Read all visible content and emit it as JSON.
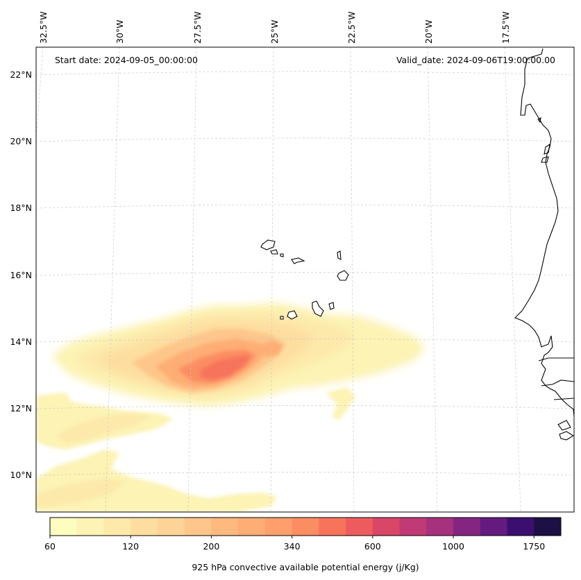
{
  "header": {
    "start_date": "Start date: 2024-09-05_00:00:00",
    "valid_date": "Valid_date: 2024-09-06T19:00:00.00"
  },
  "axes": {
    "lon_labels": [
      "32.5°W",
      "30°W",
      "27.5°W",
      "25°W",
      "22.5°W",
      "20°W",
      "17.5°W"
    ],
    "lat_labels": [
      "22°N",
      "20°N",
      "18°N",
      "16°N",
      "14°N",
      "12°N",
      "10°N"
    ],
    "gridlines": "dashed light grey"
  },
  "colorbar": {
    "label": "925 hPa convective available potential energy (j/Kg)",
    "tick_labels": [
      "60",
      "120",
      "200",
      "340",
      "600",
      "1000",
      "1750"
    ],
    "colors": [
      "#fcfdbf",
      "#fcf3b4",
      "#fde9aa",
      "#fddea0",
      "#fed398",
      "#fec68a",
      "#feb97f",
      "#fead74",
      "#fe9f6d",
      "#fb8d62",
      "#f7735c",
      "#ee5b5e",
      "#da4667",
      "#c03a76",
      "#a6317d",
      "#842681",
      "#651a80",
      "#3b0f70",
      "#1c1044"
    ]
  },
  "chart_data": {
    "type": "filled-contour map",
    "variable": "925 hPa convective available potential energy",
    "units": "j/Kg",
    "domain_lon": [
      -33,
      -15.5
    ],
    "domain_lat": [
      8.8,
      22.8
    ],
    "levels": [
      60,
      120,
      200,
      340,
      600,
      1000,
      1750
    ],
    "max_region": {
      "lon": -26.5,
      "lat": 13.1,
      "approx_value": 600
    },
    "features": [
      "Cape Verde Islands",
      "West African coast"
    ]
  }
}
